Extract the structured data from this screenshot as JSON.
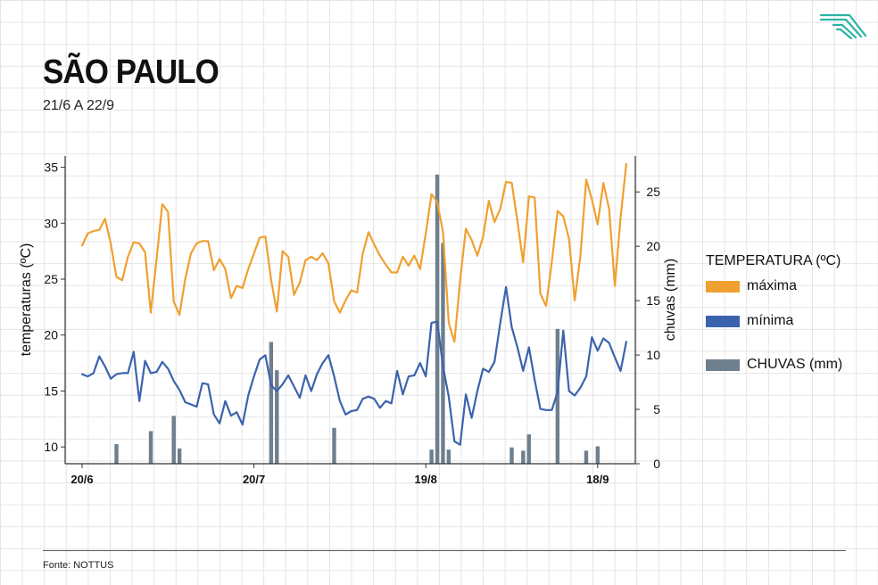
{
  "header": {
    "title": "SÃO PAULO",
    "subtitle": "21/6 A 22/9",
    "logo_icon": "g1-stripes-logo",
    "logo_color": "#2bb3a4"
  },
  "legend": {
    "title": "TEMPERATURA (ºC)",
    "max_label": "máxima",
    "min_label": "mínima",
    "rain_label": "CHUVAS (mm)"
  },
  "footer": {
    "source": "Fonte: NOTTUS"
  },
  "colors": {
    "max": "#f0a030",
    "min": "#3b63ad",
    "rain": "#6e7f8e",
    "axis": "#333333"
  },
  "chart_data": {
    "type": "line+bar",
    "ylabel_left": "temperaturas (ºC)",
    "ylabel_right": "chuvas (mm)",
    "ylim_left": [
      8.5,
      36
    ],
    "ylim_right": [
      0,
      28.3
    ],
    "y_ticks_left": [
      10,
      15,
      20,
      25,
      30,
      35
    ],
    "y_ticks_right": [
      0,
      5,
      10,
      15,
      20,
      25
    ],
    "x_start": "20/6",
    "x_tick_labels": [
      {
        "label": "20/6",
        "day": 0
      },
      {
        "label": "20/7",
        "day": 30
      },
      {
        "label": "19/8",
        "day": 60
      },
      {
        "label": "18/9",
        "day": 90
      }
    ],
    "legend_position": "right",
    "grid": false,
    "series": [
      {
        "name": "máxima",
        "type": "line",
        "values": [
          28,
          29.1,
          29.3,
          29.4,
          30.4,
          28.2,
          25.2,
          24.9,
          27,
          28.3,
          28.2,
          27.4,
          22,
          26.8,
          31.7,
          31,
          23,
          21.8,
          25,
          27.3,
          28.2,
          28.4,
          28.4,
          25.8,
          26.8,
          25.9,
          23.3,
          24.4,
          24.2,
          25.9,
          27.3,
          28.7,
          28.8,
          24.9,
          22.1,
          27.5,
          27,
          23.6,
          24.7,
          26.7,
          27,
          26.7,
          27.3,
          26.4,
          23,
          22,
          23.1,
          24,
          23.8,
          27.3,
          29.2,
          28.1,
          27.1,
          26.3,
          25.6,
          25.6,
          27,
          26.2,
          27.1,
          25.9,
          29.1,
          32.6,
          31.9,
          29.2,
          21.1,
          19.4,
          24.9,
          29.5,
          28.5,
          27.1,
          28.8,
          32,
          30.1,
          31.3,
          33.7,
          33.6,
          30.2,
          26.5,
          32.4,
          32.3,
          23.7,
          22.6,
          26.5,
          31.1,
          30.6,
          28.6,
          23.1,
          27.1,
          33.9,
          32.1,
          29.9,
          33.6,
          31.3,
          24.4,
          30.5,
          35.3
        ]
      },
      {
        "name": "mínima",
        "type": "line",
        "values": [
          16.5,
          16.3,
          16.6,
          18.1,
          17.2,
          16.1,
          16.5,
          16.6,
          16.6,
          18.5,
          14.1,
          17.7,
          16.6,
          16.7,
          17.6,
          17,
          15.9,
          15.1,
          14,
          13.8,
          13.6,
          15.7,
          15.6,
          12.9,
          12.1,
          14.1,
          12.8,
          13.1,
          12,
          14.6,
          16.3,
          17.8,
          18.2,
          15.5,
          15,
          15.6,
          16.4,
          15.4,
          14.4,
          16.4,
          15,
          16.5,
          17.5,
          18.2,
          16.3,
          14.1,
          12.9,
          13.2,
          13.3,
          14.3,
          14.5,
          14.3,
          13.5,
          14.1,
          13.9,
          16.8,
          14.7,
          16.3,
          16.4,
          17.5,
          16.3,
          21.1,
          21.2,
          17.2,
          14.5,
          10.5,
          10.2,
          14.7,
          12.6,
          15,
          17,
          16.7,
          17.6,
          21.1,
          24.3,
          20.7,
          18.9,
          16.8,
          18.9,
          16,
          13.4,
          13.3,
          13.3,
          14.9,
          20.4,
          15,
          14.6,
          15.3,
          16.3,
          19.8,
          18.6,
          19.7,
          19.3,
          18,
          16.8,
          19.4
        ]
      },
      {
        "name": "CHUVAS (mm)",
        "type": "bar",
        "axis": "right",
        "points": [
          {
            "day": 6,
            "value": 1.8
          },
          {
            "day": 12,
            "value": 3
          },
          {
            "day": 16,
            "value": 4.4
          },
          {
            "day": 17,
            "value": 1.4
          },
          {
            "day": 33,
            "value": 11.2
          },
          {
            "day": 34,
            "value": 8.6
          },
          {
            "day": 44,
            "value": 3.3
          },
          {
            "day": 61,
            "value": 1.3
          },
          {
            "day": 62,
            "value": 26.6
          },
          {
            "day": 63,
            "value": 20.3
          },
          {
            "day": 64,
            "value": 1.3
          },
          {
            "day": 75,
            "value": 1.5
          },
          {
            "day": 77,
            "value": 1.2
          },
          {
            "day": 78,
            "value": 2.7
          },
          {
            "day": 83,
            "value": 12.4
          },
          {
            "day": 88,
            "value": 1.2
          },
          {
            "day": 90,
            "value": 1.6
          }
        ]
      }
    ]
  }
}
